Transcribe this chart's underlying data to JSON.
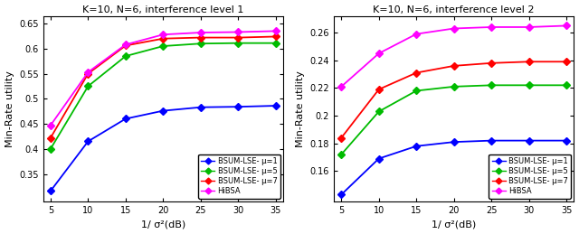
{
  "x": [
    5,
    10,
    15,
    20,
    25,
    30,
    35
  ],
  "plot1": {
    "title": "K=10, N=6, interference level 1",
    "ylabel": "Min-Rate utility",
    "xlabel": "1/ σ²(dB)",
    "ylim": [
      0.295,
      0.665
    ],
    "yticks": [
      0.35,
      0.4,
      0.45,
      0.5,
      0.55,
      0.6,
      0.65
    ],
    "ytick_labels": [
      "0.35",
      "0.4",
      "0.45",
      "0.5",
      "0.55",
      "0.6",
      "0.65"
    ],
    "bsum1": [
      0.316,
      0.415,
      0.46,
      0.476,
      0.483,
      0.484,
      0.486
    ],
    "bsum5": [
      0.4,
      0.525,
      0.585,
      0.605,
      0.61,
      0.611,
      0.611
    ],
    "bsum7": [
      0.422,
      0.55,
      0.606,
      0.62,
      0.622,
      0.622,
      0.624
    ],
    "hibsa": [
      0.447,
      0.553,
      0.608,
      0.628,
      0.632,
      0.633,
      0.635
    ],
    "legend_loc": "lower right"
  },
  "plot2": {
    "title": "K=10, N=6, interference level 2",
    "ylabel": "Min-Rate utility",
    "xlabel": "1/ σ²(dB)",
    "ylim": [
      0.138,
      0.272
    ],
    "yticks": [
      0.16,
      0.18,
      0.2,
      0.22,
      0.24,
      0.26
    ],
    "ytick_labels": [
      "0.16",
      "0.18",
      "0.2",
      "0.22",
      "0.24",
      "0.26"
    ],
    "bsum1": [
      0.143,
      0.169,
      0.178,
      0.181,
      0.182,
      0.182,
      0.182
    ],
    "bsum5": [
      0.172,
      0.203,
      0.218,
      0.221,
      0.222,
      0.222,
      0.222
    ],
    "bsum7": [
      0.184,
      0.219,
      0.231,
      0.236,
      0.238,
      0.239,
      0.239
    ],
    "hibsa": [
      0.221,
      0.245,
      0.259,
      0.263,
      0.264,
      0.264,
      0.265
    ],
    "legend_loc": "lower right"
  },
  "colors": {
    "bsum1": "#0000FF",
    "bsum5": "#00BB00",
    "bsum7": "#FF0000",
    "hibsa": "#FF00FF"
  },
  "legend_labels": [
    "BSUM-LSE- μ=1",
    "BSUM-LSE- μ=5",
    "BSUM-LSE- μ=7",
    "HiBSA"
  ],
  "marker": "D",
  "markersize": 4,
  "linewidth": 1.3,
  "title_fontsize": 8,
  "label_fontsize": 8,
  "tick_fontsize": 7,
  "legend_fontsize": 6
}
